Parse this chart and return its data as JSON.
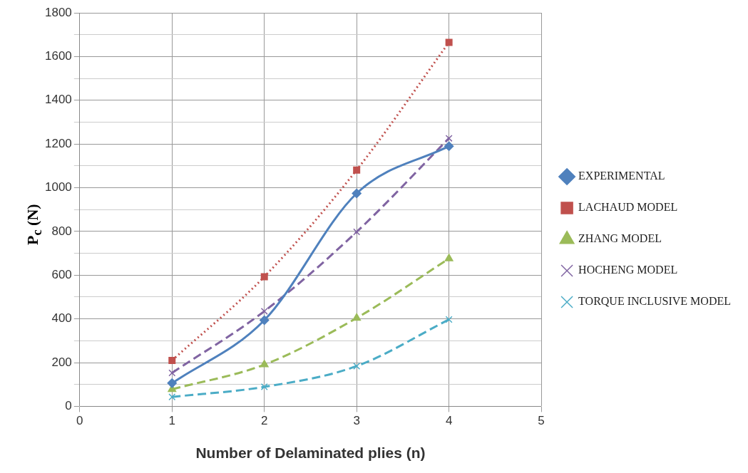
{
  "chart_data": {
    "type": "line",
    "xlabel": "Number of Delaminated plies (n)",
    "ylabel": "P$_{c}$ (N)",
    "x": [
      1,
      2,
      3,
      4
    ],
    "xlim": [
      0,
      5
    ],
    "xticks": [
      0,
      1,
      2,
      3,
      4,
      5
    ],
    "ylim": [
      0,
      1800
    ],
    "yticks": [
      0,
      {
        "value": 100,
        "label": null
      },
      200,
      {
        "value": 300,
        "label": null
      },
      400,
      {
        "value": 500,
        "label": null
      },
      600,
      {
        "value": 700,
        "label": null
      },
      800,
      {
        "value": 900,
        "label": null
      },
      1000,
      {
        "value": 1100,
        "label": null
      },
      1200,
      {
        "value": 1300,
        "label": null
      },
      1400,
      {
        "value": 1500,
        "label": null
      },
      1600,
      {
        "value": 1700,
        "label": null
      },
      1800
    ],
    "grid": true,
    "legend": "right",
    "series": [
      {
        "name": "EXPERIMENTAL",
        "color": "#4f81bd",
        "values": [
          106,
          394,
          974,
          1190
        ],
        "marker": "diamond",
        "line_style": "solid"
      },
      {
        "name": "LACHAUD MODEL",
        "color": "#c0504d",
        "values": [
          210,
          593,
          1081,
          1665
        ],
        "marker": "square",
        "line_style": "dotted"
      },
      {
        "name": "ZHANG MODEL",
        "color": "#9bbb59",
        "values": [
          78,
          191,
          404,
          676
        ],
        "marker": "triangle",
        "line_style": "dashed"
      },
      {
        "name": "HOCHENG MODEL",
        "color": "#8064a2",
        "values": [
          153,
          435,
          798,
          1226
        ],
        "marker": "cross",
        "line_style": "dashed"
      },
      {
        "name": "TORQUE INCLUSIVE MODEL",
        "color": "#4bacc6",
        "values": [
          43,
          89,
          184,
          397
        ],
        "marker": "cross",
        "line_style": "dashed"
      }
    ]
  }
}
